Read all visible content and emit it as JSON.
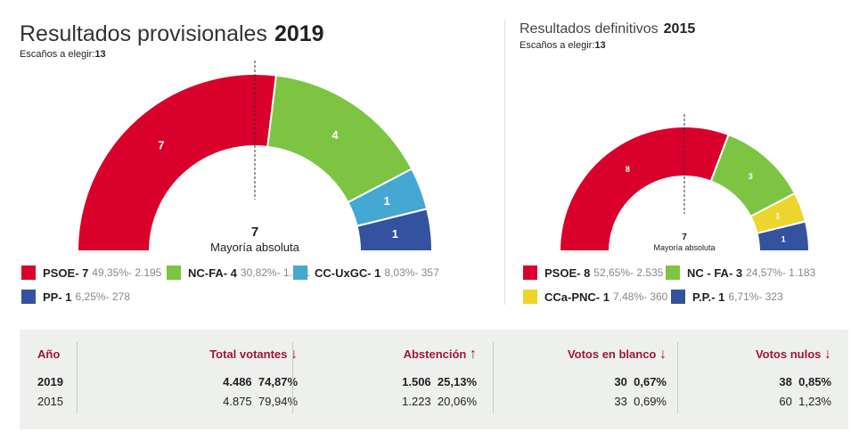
{
  "chart2019": {
    "title": "Resultados provisionales",
    "year": "2019",
    "seats_label": "Escaños a elegir:",
    "seats": "13",
    "majority": "7",
    "majority_label": "Mayoría absoluta",
    "parties": [
      {
        "name": "PSOE- 7",
        "seats": 7,
        "pct": "49,35%- 2.195",
        "color": "#d9002b"
      },
      {
        "name": "NC-FA- 4",
        "seats": 4,
        "pct": "30,82%- 1.371",
        "color": "#7dc443"
      },
      {
        "name": "CC-UxGC- 1",
        "seats": 1,
        "pct": "8,03%- 357",
        "color": "#45a8d2"
      },
      {
        "name": "PP- 1",
        "seats": 1,
        "pct": "6,25%- 278",
        "color": "#34529d"
      }
    ]
  },
  "chart2015": {
    "title": "Resultados definitivos",
    "year": "2015",
    "seats_label": "Escaños a elegir:",
    "seats": "13",
    "majority": "7",
    "majority_label": "Mayoría absoluta",
    "parties": [
      {
        "name": "PSOE- 8",
        "seats": 8,
        "pct": "52,65%- 2.535",
        "color": "#d9002b"
      },
      {
        "name": "NC - FA- 3",
        "seats": 3,
        "pct": "24,57%- 1.183",
        "color": "#7dc443"
      },
      {
        "name": "CCa-PNC- 1",
        "seats": 1,
        "pct": "7,48%- 360",
        "color": "#ecd52c"
      },
      {
        "name": "P.P.- 1",
        "seats": 1,
        "pct": "6,71%- 323",
        "color": "#34529d"
      }
    ]
  },
  "table": {
    "headers": {
      "year": "Año",
      "voters": "Total votantes",
      "abst": "Abstención",
      "blank": "Votos en blanco",
      "null": "Votos nulos"
    },
    "arrows": {
      "voters": "↓",
      "abst": "↑",
      "blank": "↓",
      "null": "↓"
    },
    "rows": [
      {
        "year": "2019",
        "voters": "4.486",
        "voters_pct": "74,87%",
        "abst": "1.506",
        "abst_pct": "25,13%",
        "blank": "30",
        "blank_pct": "0,67%",
        "null": "38",
        "null_pct": "0,85%"
      },
      {
        "year": "2015",
        "voters": "4.875",
        "voters_pct": "79,94%",
        "abst": "1.223",
        "abst_pct": "20,06%",
        "blank": "33",
        "blank_pct": "0,69%",
        "null": "60",
        "null_pct": "1,23%"
      }
    ]
  }
}
